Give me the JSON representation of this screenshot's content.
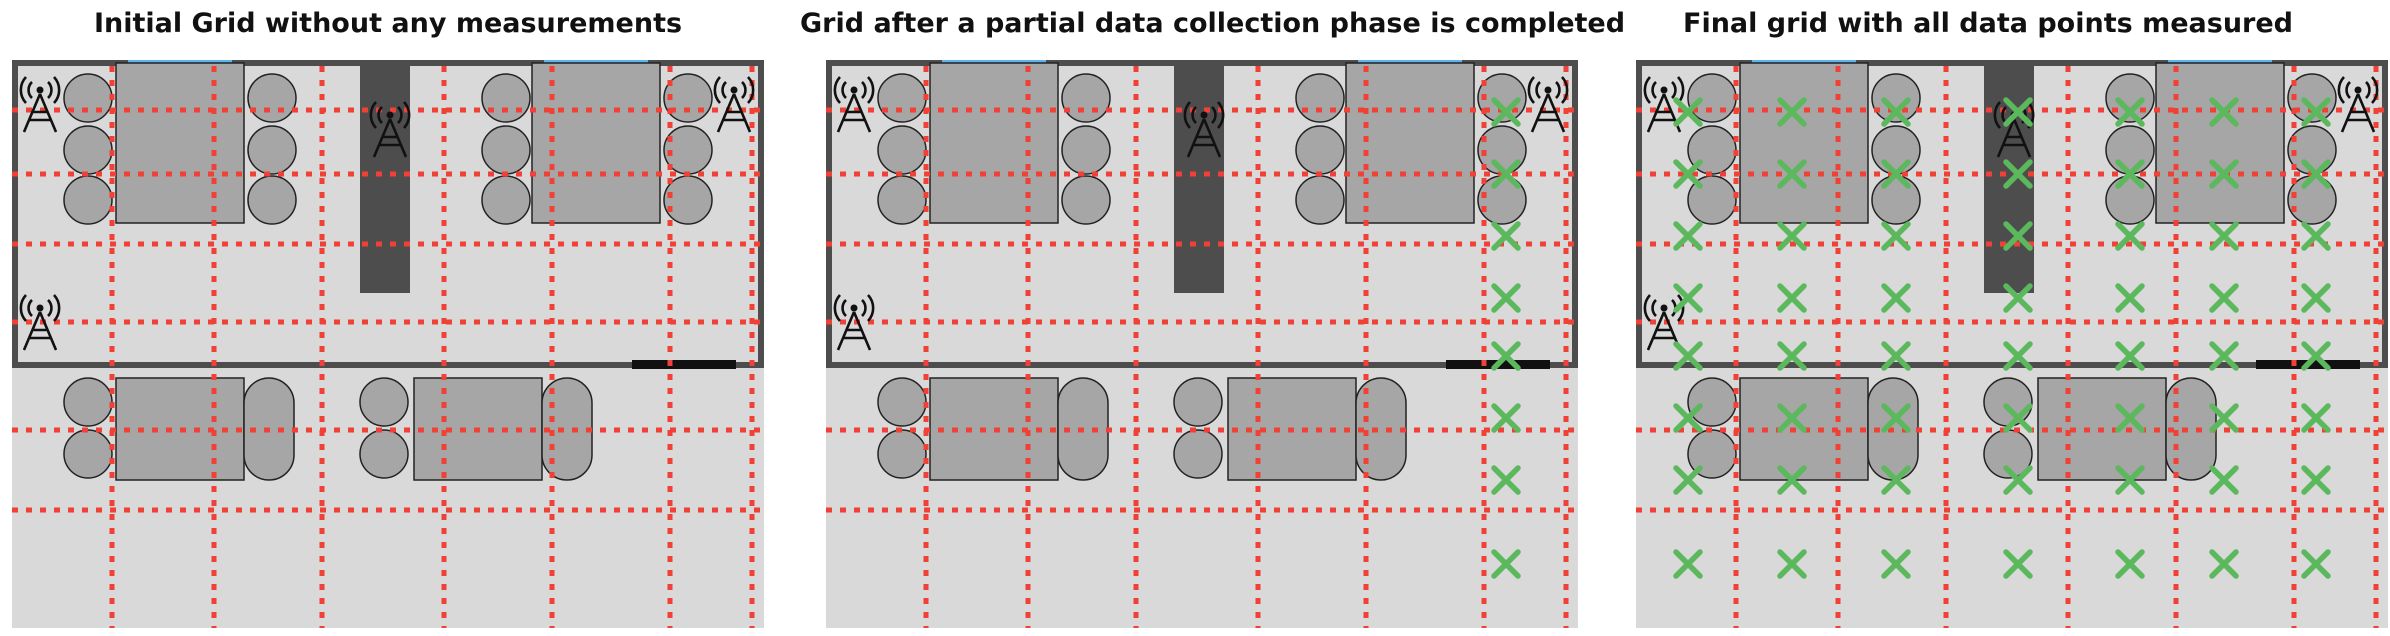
{
  "colors": {
    "floor": "#d9d9d9",
    "wall": "#4d4d4d",
    "furniture": "#a6a6a6",
    "chair": "#a6a6a6",
    "window": "#5eb3f0",
    "door": "#111111",
    "grid_line": "#ef4136",
    "measurement_mark": "#5cb85c",
    "antenna": "#111111"
  },
  "icons": [
    "antenna-icon",
    "measurement-x-icon"
  ],
  "panels": [
    {
      "title": "Initial Grid without any measurements",
      "stage": "initial",
      "measured_columns": []
    },
    {
      "title": "Grid after a partial data collection phase is completed",
      "stage": "partial",
      "measured_columns": [
        6
      ]
    },
    {
      "title": "Final grid with all data points measured",
      "stage": "final",
      "measured_columns": [
        0,
        1,
        2,
        3,
        4,
        5,
        6
      ]
    }
  ]
}
